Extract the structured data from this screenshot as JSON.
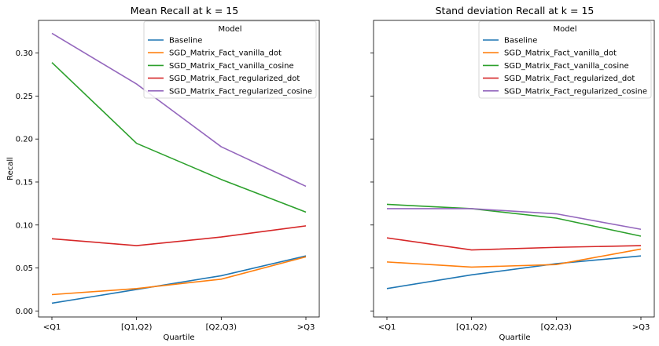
{
  "chart_data": [
    {
      "type": "line",
      "title": "Mean Recall at k = 15",
      "xlabel": "Quartile",
      "ylabel": "Recall",
      "categories": [
        "<Q1",
        "[Q1,Q2)",
        "[Q2,Q3)",
        ">Q3"
      ],
      "ylim": [
        -0.007,
        0.338
      ],
      "yticks": [
        "0.00",
        "0.05",
        "0.10",
        "0.15",
        "0.20",
        "0.25",
        "0.30"
      ],
      "legend_title": "Model",
      "legend_position": "upper right",
      "grid": false,
      "series": [
        {
          "name": "Baseline",
          "color": "#1f77b4",
          "values": [
            0.009,
            0.025,
            0.041,
            0.064
          ]
        },
        {
          "name": "SGD_Matrix_Fact_vanilla_dot",
          "color": "#ff7f0e",
          "values": [
            0.019,
            0.026,
            0.037,
            0.063
          ]
        },
        {
          "name": "SGD_Matrix_Fact_vanilla_cosine",
          "color": "#2ca02c",
          "values": [
            0.289,
            0.195,
            0.153,
            0.115
          ]
        },
        {
          "name": "SGD_Matrix_Fact_regularized_dot",
          "color": "#d62728",
          "values": [
            0.084,
            0.076,
            0.086,
            0.099
          ]
        },
        {
          "name": "SGD_Matrix_Fact_regularized_cosine",
          "color": "#9467bd",
          "values": [
            0.323,
            0.264,
            0.191,
            0.145
          ]
        }
      ]
    },
    {
      "type": "line",
      "title": "Stand deviation Recall at k = 15",
      "xlabel": "Quartile",
      "ylabel": "",
      "categories": [
        "<Q1",
        "[Q1,Q2)",
        "[Q2,Q3)",
        ">Q3"
      ],
      "ylim": [
        -0.007,
        0.338
      ],
      "yticks": [],
      "legend_title": "Model",
      "legend_position": "upper right",
      "grid": false,
      "series": [
        {
          "name": "Baseline",
          "color": "#1f77b4",
          "values": [
            0.026,
            0.042,
            0.055,
            0.064
          ]
        },
        {
          "name": "SGD_Matrix_Fact_vanilla_dot",
          "color": "#ff7f0e",
          "values": [
            0.057,
            0.051,
            0.054,
            0.072
          ]
        },
        {
          "name": "SGD_Matrix_Fact_vanilla_cosine",
          "color": "#2ca02c",
          "values": [
            0.124,
            0.119,
            0.108,
            0.087
          ]
        },
        {
          "name": "SGD_Matrix_Fact_regularized_dot",
          "color": "#d62728",
          "values": [
            0.085,
            0.071,
            0.074,
            0.076
          ]
        },
        {
          "name": "SGD_Matrix_Fact_regularized_cosine",
          "color": "#9467bd",
          "values": [
            0.119,
            0.119,
            0.113,
            0.095
          ]
        }
      ]
    }
  ]
}
